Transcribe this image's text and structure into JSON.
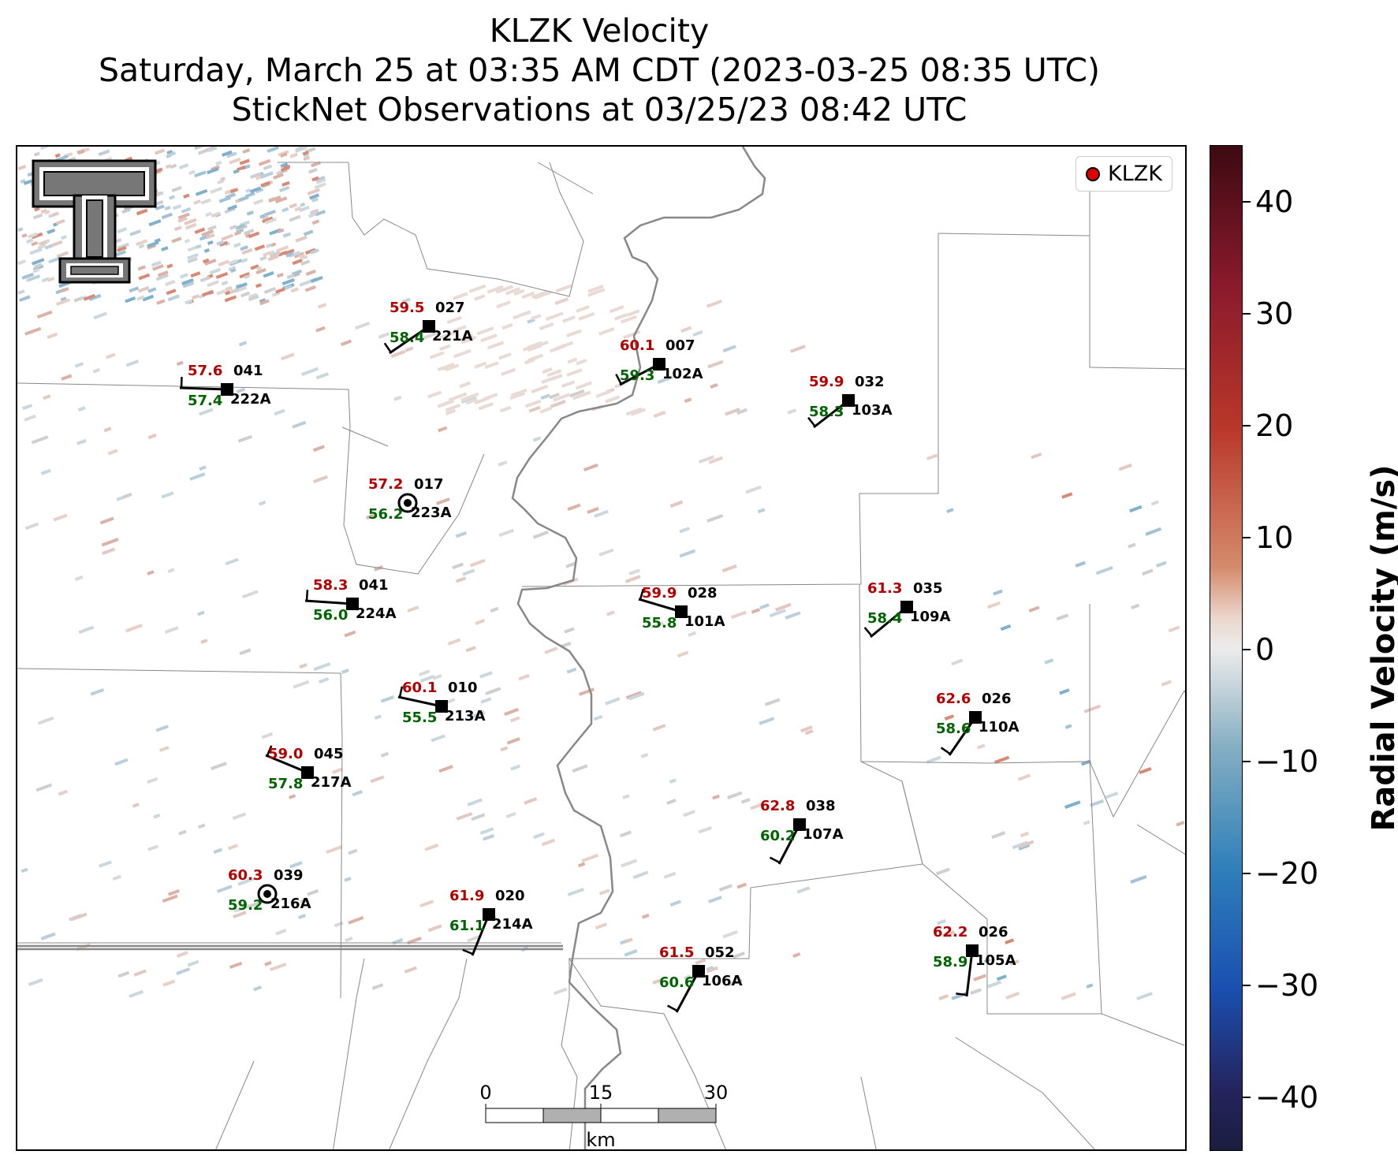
{
  "title": {
    "line1": "KLZK Velocity",
    "line2": "Saturday, March 25 at 03:35 AM CDT (2023-03-25 08:35 UTC)",
    "line3": "StickNet Observations at 03/25/23 08:42 UTC"
  },
  "legend": {
    "label": "KLZK",
    "marker_color": "#e00000"
  },
  "colorbar": {
    "label": "Radial Velocity (m/s)",
    "ticks": [
      "40",
      "30",
      "20",
      "10",
      "0",
      "−10",
      "−20",
      "−30",
      "−40"
    ],
    "range": [
      -45,
      45
    ]
  },
  "scale_bar": {
    "ticks": [
      "0",
      "15",
      "30"
    ],
    "unit": "km"
  },
  "colors": {
    "temperature": "#b30000",
    "dewpoint": "#006400",
    "station": "#000000"
  },
  "stations": [
    {
      "temp": "59.5",
      "dew": "58.4",
      "dir": "027",
      "id": "221A"
    },
    {
      "temp": "57.6",
      "dew": "57.4",
      "dir": "041",
      "id": "222A"
    },
    {
      "temp": "60.1",
      "dew": "59.3",
      "dir": "007",
      "id": "102A"
    },
    {
      "temp": "59.9",
      "dew": "58.3",
      "dir": "032",
      "id": "103A"
    },
    {
      "temp": "57.2",
      "dew": "56.2",
      "dir": "017",
      "id": "223A"
    },
    {
      "temp": "58.3",
      "dew": "56.0",
      "dir": "041",
      "id": "224A"
    },
    {
      "temp": "59.9",
      "dew": "55.8",
      "dir": "028",
      "id": "101A"
    },
    {
      "temp": "61.3",
      "dew": "58.4",
      "dir": "035",
      "id": "109A"
    },
    {
      "temp": "60.1",
      "dew": "55.5",
      "dir": "010",
      "id": "213A"
    },
    {
      "temp": "62.6",
      "dew": "58.6",
      "dir": "026",
      "id": "110A"
    },
    {
      "temp": "59.0",
      "dew": "57.8",
      "dir": "045",
      "id": "217A"
    },
    {
      "temp": "62.8",
      "dew": "60.2",
      "dir": "038",
      "id": "107A"
    },
    {
      "temp": "60.3",
      "dew": "59.2",
      "dir": "039",
      "id": "216A"
    },
    {
      "temp": "61.9",
      "dew": "61.1",
      "dir": "020",
      "id": "214A"
    },
    {
      "temp": "61.5",
      "dew": "60.6",
      "dir": "052",
      "id": "106A"
    },
    {
      "temp": "62.2",
      "dew": "58.9",
      "dir": "026",
      "id": "105A"
    }
  ]
}
